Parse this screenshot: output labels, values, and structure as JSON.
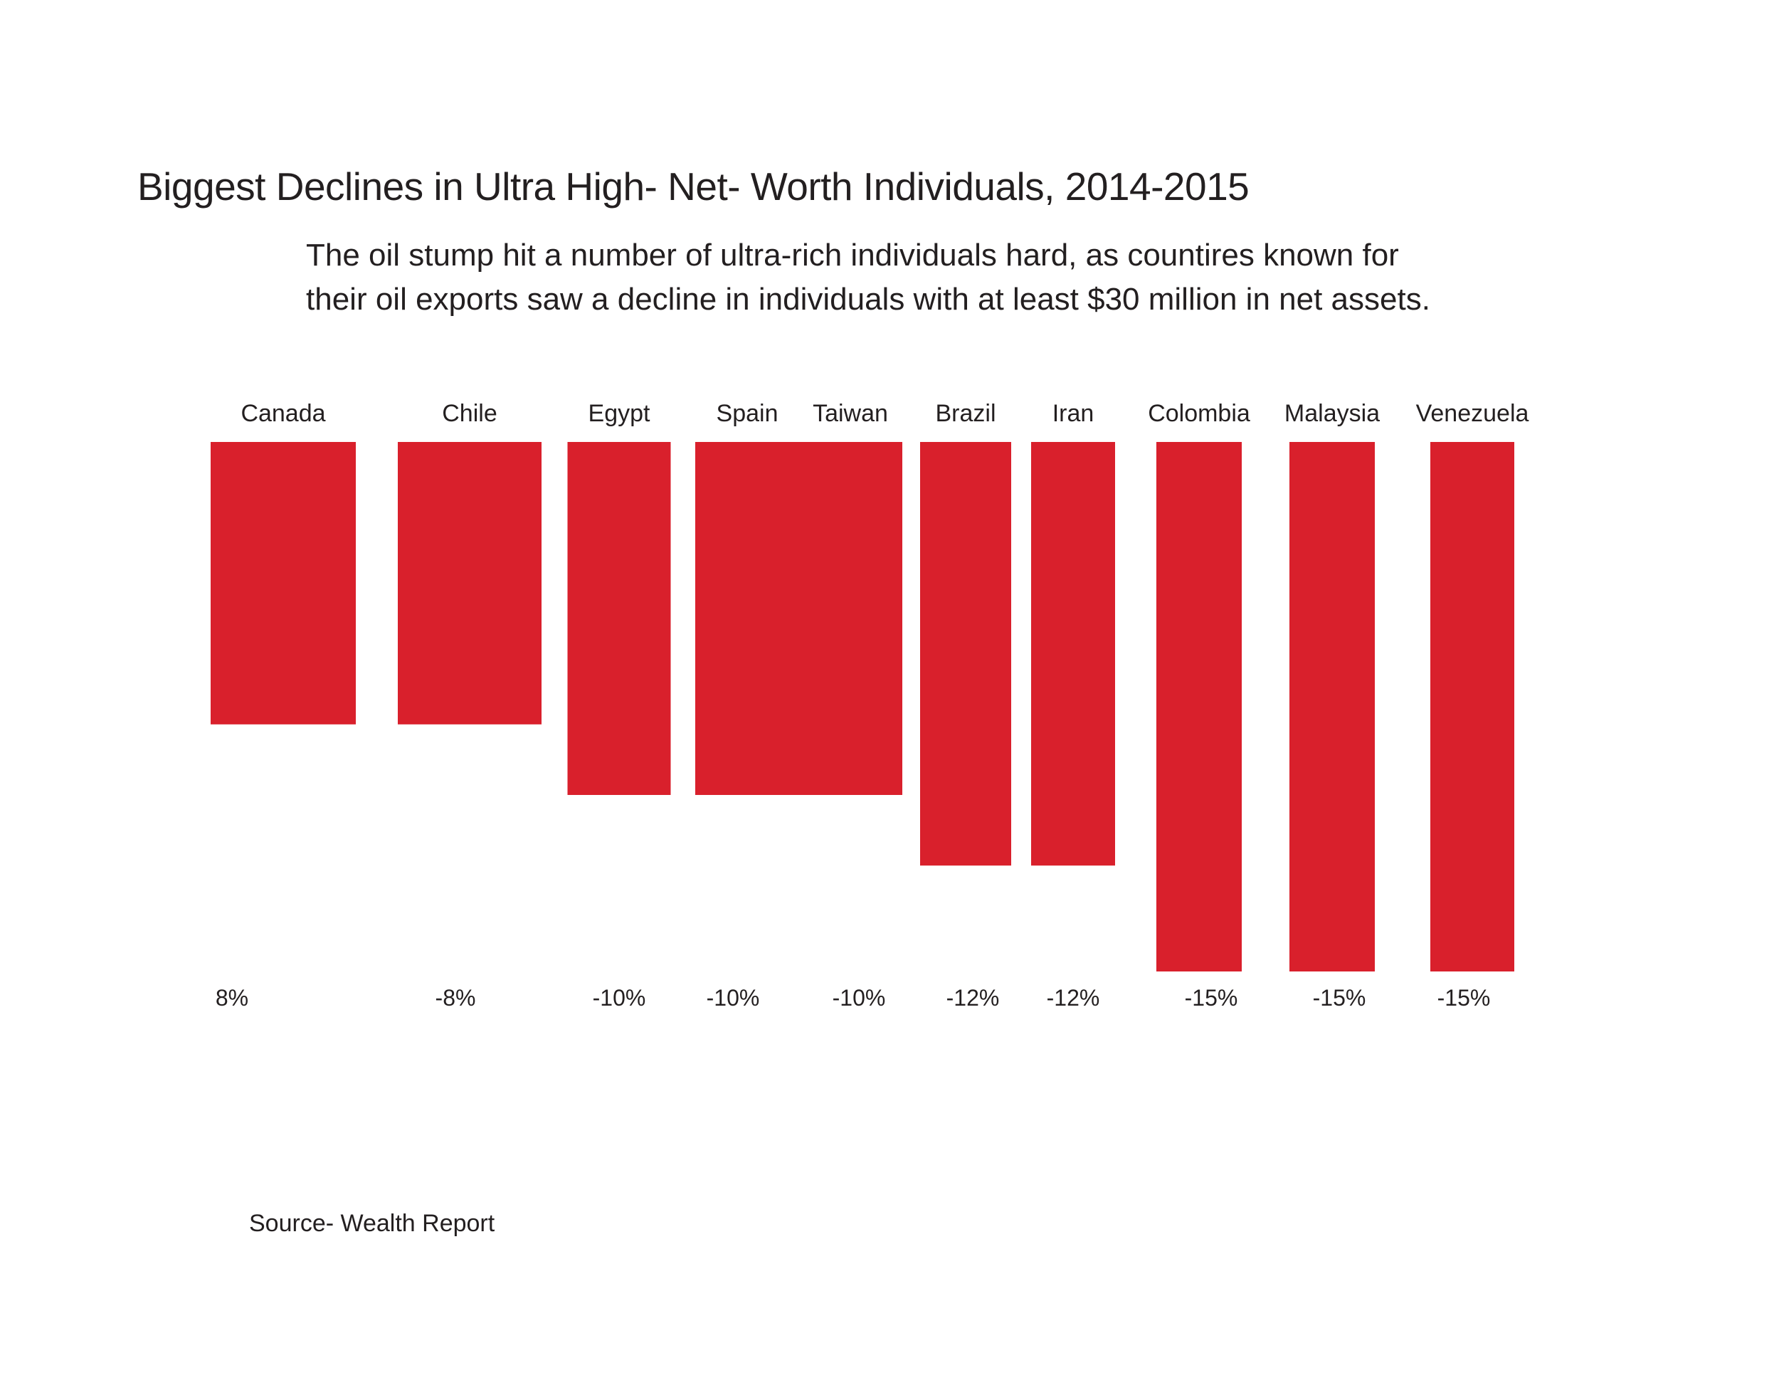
{
  "chart_data": {
    "type": "bar",
    "title": "Biggest Declines in Ultra High- Net- Worth Individuals, 2014-2015",
    "subtitle": "The oil stump hit a number of ultra-rich individuals hard, as countires known for their oil exports saw a decline in individuals with at least $30 million in net assets.",
    "categories": [
      "Canada",
      "Chile",
      "Egypt",
      "Spain",
      "Taiwan",
      "Brazil",
      "Iran",
      "Colombia",
      "Malaysia",
      "Venezuela"
    ],
    "values": [
      8,
      -8,
      -10,
      -10,
      -10,
      -12,
      -12,
      -15,
      -15,
      -15
    ],
    "value_labels": [
      "8%",
      "-8%",
      "-10%",
      "-10%",
      "-10%",
      "-12%",
      "-12%",
      "-15%",
      "-15%",
      "-15%"
    ],
    "bar_color": "#d9202c",
    "orientation": "bars hang downward from the top baseline; length = magnitude of decline",
    "grid": false,
    "legend": "none"
  },
  "source": "Source- Wealth Report"
}
